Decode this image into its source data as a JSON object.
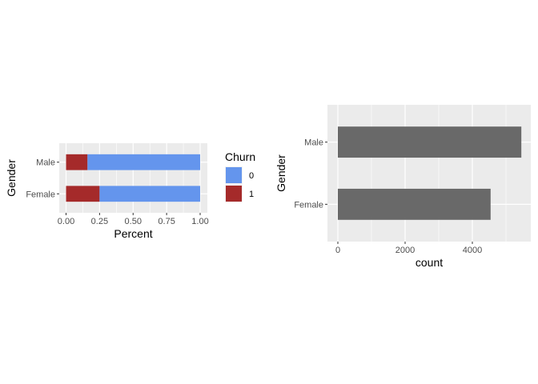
{
  "chart_data": [
    {
      "type": "bar",
      "orientation": "horizontal",
      "stacked": true,
      "title": "",
      "xlabel": "Percent",
      "ylabel": "Gender",
      "xlim": [
        0,
        1
      ],
      "x_ticks": [
        "0.00",
        "0.25",
        "0.50",
        "0.75",
        "1.00"
      ],
      "x_tick_values": [
        0,
        0.25,
        0.5,
        0.75,
        1
      ],
      "categories": [
        "Female",
        "Male"
      ],
      "series": [
        {
          "name": "0",
          "color": "#6495ED",
          "values": [
            0.75,
            0.84
          ]
        },
        {
          "name": "1",
          "color": "#A52A2A",
          "values": [
            0.25,
            0.16
          ]
        }
      ],
      "legend": {
        "title": "Churn",
        "placement": "right"
      },
      "panel_background": "#EBEBEB",
      "grid": true
    },
    {
      "type": "bar",
      "orientation": "horizontal",
      "title": "",
      "xlabel": "count",
      "ylabel": "Gender",
      "xlim": [
        0,
        5500
      ],
      "x_ticks": [
        "0",
        "2000",
        "4000"
      ],
      "x_tick_values": [
        0,
        2000,
        4000
      ],
      "categories": [
        "Female",
        "Male"
      ],
      "series": [
        {
          "color": "#696969",
          "values": [
            4543,
            5457
          ]
        }
      ],
      "panel_background": "#EBEBEB",
      "grid": true
    }
  ]
}
